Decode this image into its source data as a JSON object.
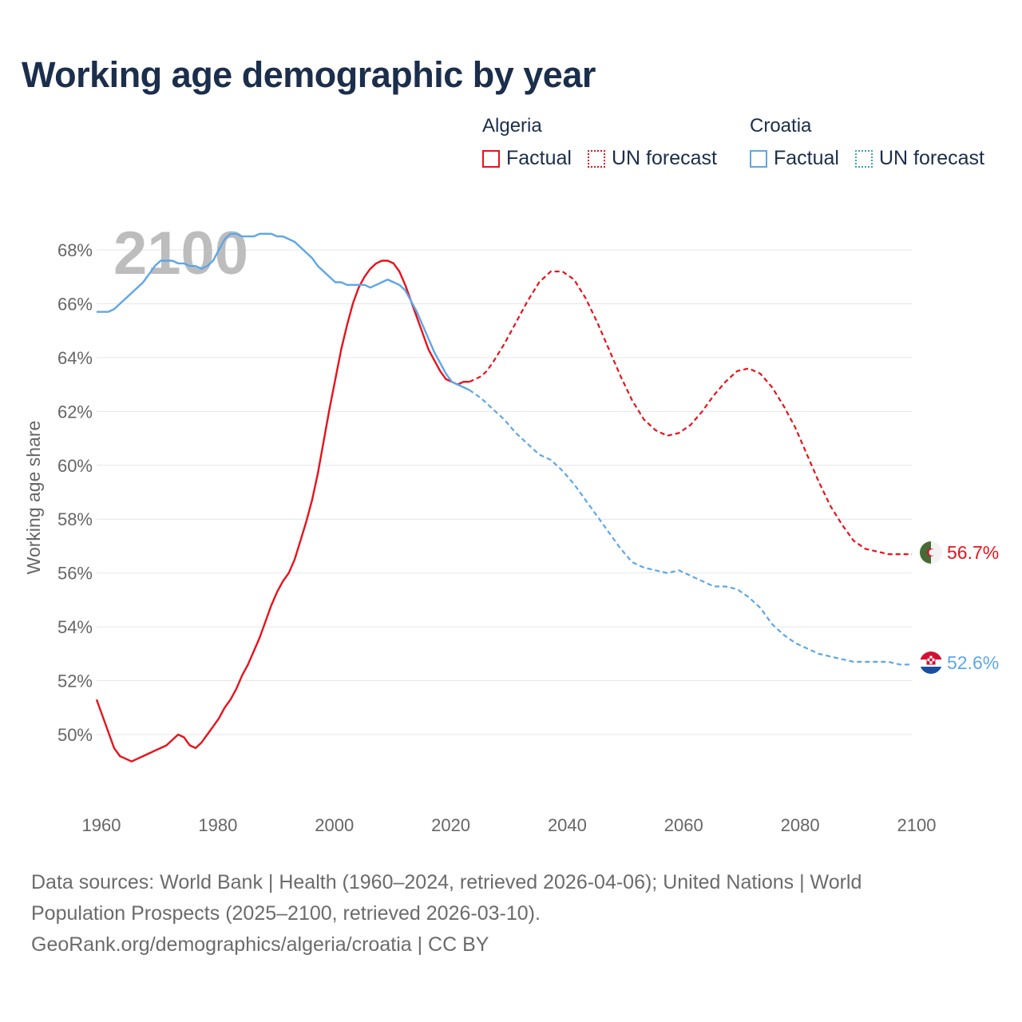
{
  "title": "Working age demographic by year",
  "legend": {
    "groups": [
      {
        "country": "Algeria",
        "factual_label": "Factual",
        "forecast_label": "UN forecast",
        "color": "#e8121b"
      },
      {
        "country": "Croatia",
        "factual_label": "Factual",
        "forecast_label": "UN forecast",
        "color": "#5ea6e8"
      }
    ]
  },
  "footer": {
    "line1": "Data sources: World Bank | Health (1960–2024, retrieved 2026-04-06); United Nations | World",
    "line2": "Population Prospects (2025–2100, retrieved 2026-03-10).",
    "line3": "GeoRank.org/demographics/algeria/croatia | CC BY"
  },
  "chart_data": {
    "type": "line",
    "title": "Working age demographic by year",
    "xlabel": "",
    "ylabel": "Working age share",
    "xlim": [
      1960,
      2100
    ],
    "ylim": [
      48,
      69.5
    ],
    "x_ticks": [
      1960,
      1980,
      2000,
      2020,
      2040,
      2060,
      2080,
      2100
    ],
    "y_ticks": [
      50,
      52,
      54,
      56,
      58,
      60,
      62,
      64,
      66,
      68
    ],
    "y_tick_labels": [
      "50%",
      "52%",
      "54%",
      "56%",
      "58%",
      "60%",
      "62%",
      "64%",
      "66%",
      "68%"
    ],
    "x_tick_labels": [
      "1960",
      "1980",
      "2000",
      "2020",
      "2040",
      "2060",
      "2080",
      "2100"
    ],
    "grid": true,
    "year_label": "2100",
    "factual_range": [
      1960,
      2024
    ],
    "forecast_range": [
      2024,
      2100
    ],
    "series": [
      {
        "name": "Algeria",
        "color": "#e8121b",
        "end_label": "56.7%",
        "points": [
          [
            1960,
            51.3
          ],
          [
            1961,
            50.7
          ],
          [
            1962,
            50.1
          ],
          [
            1963,
            49.5
          ],
          [
            1964,
            49.2
          ],
          [
            1965,
            49.1
          ],
          [
            1966,
            49.0
          ],
          [
            1967,
            49.1
          ],
          [
            1968,
            49.2
          ],
          [
            1969,
            49.3
          ],
          [
            1970,
            49.4
          ],
          [
            1971,
            49.5
          ],
          [
            1972,
            49.6
          ],
          [
            1973,
            49.8
          ],
          [
            1974,
            50.0
          ],
          [
            1975,
            49.9
          ],
          [
            1976,
            49.6
          ],
          [
            1977,
            49.5
          ],
          [
            1978,
            49.7
          ],
          [
            1979,
            50.0
          ],
          [
            1980,
            50.3
          ],
          [
            1981,
            50.6
          ],
          [
            1982,
            51.0
          ],
          [
            1983,
            51.3
          ],
          [
            1984,
            51.7
          ],
          [
            1985,
            52.2
          ],
          [
            1986,
            52.6
          ],
          [
            1987,
            53.1
          ],
          [
            1988,
            53.6
          ],
          [
            1989,
            54.2
          ],
          [
            1990,
            54.8
          ],
          [
            1991,
            55.3
          ],
          [
            1992,
            55.7
          ],
          [
            1993,
            56.0
          ],
          [
            1994,
            56.5
          ],
          [
            1995,
            57.2
          ],
          [
            1996,
            57.9
          ],
          [
            1997,
            58.7
          ],
          [
            1998,
            59.7
          ],
          [
            1999,
            60.9
          ],
          [
            2000,
            62.1
          ],
          [
            2001,
            63.2
          ],
          [
            2002,
            64.3
          ],
          [
            2003,
            65.2
          ],
          [
            2004,
            66.0
          ],
          [
            2005,
            66.6
          ],
          [
            2006,
            67.0
          ],
          [
            2007,
            67.3
          ],
          [
            2008,
            67.5
          ],
          [
            2009,
            67.6
          ],
          [
            2010,
            67.6
          ],
          [
            2011,
            67.5
          ],
          [
            2012,
            67.2
          ],
          [
            2013,
            66.7
          ],
          [
            2014,
            66.1
          ],
          [
            2015,
            65.5
          ],
          [
            2016,
            64.9
          ],
          [
            2017,
            64.3
          ],
          [
            2018,
            63.9
          ],
          [
            2019,
            63.5
          ],
          [
            2020,
            63.2
          ],
          [
            2021,
            63.1
          ],
          [
            2022,
            63.0
          ],
          [
            2023,
            63.1
          ],
          [
            2024,
            63.1
          ],
          [
            2025,
            63.2
          ],
          [
            2026,
            63.3
          ],
          [
            2027,
            63.5
          ],
          [
            2028,
            63.8
          ],
          [
            2030,
            64.5
          ],
          [
            2032,
            65.3
          ],
          [
            2034,
            66.1
          ],
          [
            2036,
            66.8
          ],
          [
            2038,
            67.2
          ],
          [
            2040,
            67.2
          ],
          [
            2042,
            66.9
          ],
          [
            2044,
            66.2
          ],
          [
            2046,
            65.3
          ],
          [
            2048,
            64.3
          ],
          [
            2050,
            63.3
          ],
          [
            2052,
            62.4
          ],
          [
            2054,
            61.7
          ],
          [
            2056,
            61.3
          ],
          [
            2058,
            61.1
          ],
          [
            2060,
            61.2
          ],
          [
            2062,
            61.5
          ],
          [
            2064,
            62.0
          ],
          [
            2066,
            62.6
          ],
          [
            2068,
            63.1
          ],
          [
            2070,
            63.5
          ],
          [
            2072,
            63.6
          ],
          [
            2074,
            63.4
          ],
          [
            2076,
            62.9
          ],
          [
            2078,
            62.2
          ],
          [
            2080,
            61.4
          ],
          [
            2082,
            60.4
          ],
          [
            2084,
            59.4
          ],
          [
            2086,
            58.5
          ],
          [
            2088,
            57.8
          ],
          [
            2090,
            57.2
          ],
          [
            2092,
            56.9
          ],
          [
            2094,
            56.8
          ],
          [
            2096,
            56.7
          ],
          [
            2098,
            56.7
          ],
          [
            2100,
            56.7
          ]
        ]
      },
      {
        "name": "Croatia",
        "color": "#5ea6e8",
        "end_label": "52.6%",
        "points": [
          [
            1960,
            65.7
          ],
          [
            1961,
            65.7
          ],
          [
            1962,
            65.7
          ],
          [
            1963,
            65.8
          ],
          [
            1964,
            66.0
          ],
          [
            1965,
            66.2
          ],
          [
            1966,
            66.4
          ],
          [
            1967,
            66.6
          ],
          [
            1968,
            66.8
          ],
          [
            1969,
            67.1
          ],
          [
            1970,
            67.4
          ],
          [
            1971,
            67.6
          ],
          [
            1972,
            67.6
          ],
          [
            1973,
            67.6
          ],
          [
            1974,
            67.5
          ],
          [
            1975,
            67.5
          ],
          [
            1976,
            67.4
          ],
          [
            1977,
            67.4
          ],
          [
            1978,
            67.3
          ],
          [
            1979,
            67.4
          ],
          [
            1980,
            67.6
          ],
          [
            1981,
            68.0
          ],
          [
            1982,
            68.4
          ],
          [
            1983,
            68.6
          ],
          [
            1984,
            68.6
          ],
          [
            1985,
            68.5
          ],
          [
            1986,
            68.5
          ],
          [
            1987,
            68.5
          ],
          [
            1988,
            68.6
          ],
          [
            1989,
            68.6
          ],
          [
            1990,
            68.6
          ],
          [
            1991,
            68.5
          ],
          [
            1992,
            68.5
          ],
          [
            1993,
            68.4
          ],
          [
            1994,
            68.3
          ],
          [
            1995,
            68.1
          ],
          [
            1996,
            67.9
          ],
          [
            1997,
            67.7
          ],
          [
            1998,
            67.4
          ],
          [
            1999,
            67.2
          ],
          [
            2000,
            67.0
          ],
          [
            2001,
            66.8
          ],
          [
            2002,
            66.8
          ],
          [
            2003,
            66.7
          ],
          [
            2004,
            66.7
          ],
          [
            2005,
            66.7
          ],
          [
            2006,
            66.7
          ],
          [
            2007,
            66.6
          ],
          [
            2008,
            66.7
          ],
          [
            2009,
            66.8
          ],
          [
            2010,
            66.9
          ],
          [
            2011,
            66.8
          ],
          [
            2012,
            66.7
          ],
          [
            2013,
            66.5
          ],
          [
            2014,
            66.1
          ],
          [
            2015,
            65.7
          ],
          [
            2016,
            65.2
          ],
          [
            2017,
            64.7
          ],
          [
            2018,
            64.2
          ],
          [
            2019,
            63.8
          ],
          [
            2020,
            63.4
          ],
          [
            2021,
            63.1
          ],
          [
            2022,
            63.0
          ],
          [
            2023,
            62.9
          ],
          [
            2024,
            62.8
          ],
          [
            2026,
            62.5
          ],
          [
            2028,
            62.1
          ],
          [
            2030,
            61.7
          ],
          [
            2032,
            61.2
          ],
          [
            2034,
            60.8
          ],
          [
            2036,
            60.4
          ],
          [
            2038,
            60.2
          ],
          [
            2040,
            59.8
          ],
          [
            2042,
            59.3
          ],
          [
            2044,
            58.7
          ],
          [
            2046,
            58.1
          ],
          [
            2048,
            57.5
          ],
          [
            2050,
            56.9
          ],
          [
            2052,
            56.4
          ],
          [
            2054,
            56.2
          ],
          [
            2056,
            56.1
          ],
          [
            2058,
            56.0
          ],
          [
            2060,
            56.1
          ],
          [
            2062,
            55.9
          ],
          [
            2064,
            55.7
          ],
          [
            2066,
            55.5
          ],
          [
            2068,
            55.5
          ],
          [
            2070,
            55.4
          ],
          [
            2072,
            55.1
          ],
          [
            2074,
            54.7
          ],
          [
            2076,
            54.1
          ],
          [
            2078,
            53.7
          ],
          [
            2080,
            53.4
          ],
          [
            2082,
            53.2
          ],
          [
            2084,
            53.0
          ],
          [
            2086,
            52.9
          ],
          [
            2088,
            52.8
          ],
          [
            2090,
            52.7
          ],
          [
            2092,
            52.7
          ],
          [
            2094,
            52.7
          ],
          [
            2096,
            52.7
          ],
          [
            2098,
            52.6
          ],
          [
            2100,
            52.6
          ]
        ]
      }
    ]
  }
}
